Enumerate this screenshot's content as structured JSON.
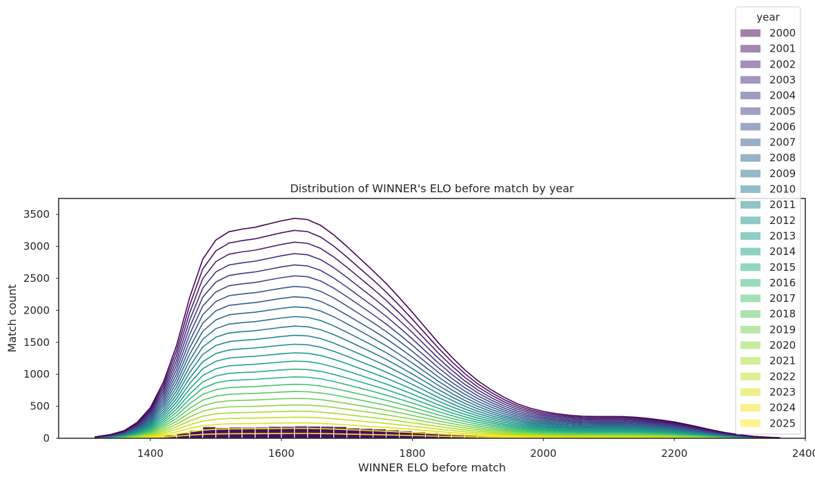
{
  "chart_data": {
    "type": "histogram-stacked-kde",
    "title": "Distribution of WINNER's ELO before match by year",
    "xlabel": "WINNER ELO before match",
    "ylabel": "Match count",
    "xlim": [
      1260,
      2400
    ],
    "ylim": [
      0,
      3750
    ],
    "x_ticks": [
      1400,
      1600,
      1800,
      2000,
      2200,
      2400
    ],
    "y_ticks": [
      0,
      500,
      1000,
      1500,
      2000,
      2500,
      3000,
      3500
    ],
    "grid": false,
    "legend": {
      "title": "year",
      "position": "upper-right"
    },
    "bin_width": 20,
    "bins": [
      [
        1320,
        20
      ],
      [
        1340,
        55
      ],
      [
        1360,
        110
      ],
      [
        1380,
        230
      ],
      [
        1400,
        480
      ],
      [
        1420,
        900
      ],
      [
        1440,
        1530
      ],
      [
        1460,
        2290
      ],
      [
        1480,
        3340
      ],
      [
        1500,
        3050
      ],
      [
        1520,
        3200
      ],
      [
        1540,
        3180
      ],
      [
        1560,
        3230
      ],
      [
        1580,
        3400
      ],
      [
        1600,
        3420
      ],
      [
        1620,
        3550
      ],
      [
        1640,
        3490
      ],
      [
        1660,
        3440
      ],
      [
        1680,
        3370
      ],
      [
        1700,
        2960
      ],
      [
        1720,
        2820
      ],
      [
        1740,
        2690
      ],
      [
        1760,
        2390
      ],
      [
        1780,
        2150
      ],
      [
        1800,
        1880
      ],
      [
        1820,
        1620
      ],
      [
        1840,
        1380
      ],
      [
        1860,
        1200
      ],
      [
        1880,
        1050
      ],
      [
        1900,
        850
      ],
      [
        1920,
        760
      ],
      [
        1940,
        660
      ],
      [
        1960,
        560
      ],
      [
        1980,
        470
      ],
      [
        2000,
        420
      ],
      [
        2020,
        380
      ],
      [
        2040,
        350
      ],
      [
        2060,
        320
      ],
      [
        2080,
        320
      ],
      [
        2100,
        330
      ],
      [
        2120,
        330
      ],
      [
        2140,
        320
      ],
      [
        2160,
        300
      ],
      [
        2180,
        280
      ],
      [
        2200,
        250
      ],
      [
        2220,
        220
      ],
      [
        2240,
        170
      ],
      [
        2260,
        120
      ],
      [
        2280,
        80
      ],
      [
        2300,
        60
      ],
      [
        2320,
        40
      ],
      [
        2340,
        20
      ]
    ],
    "kde_total_curve": [
      [
        1315,
        20
      ],
      [
        1340,
        60
      ],
      [
        1360,
        120
      ],
      [
        1380,
        250
      ],
      [
        1400,
        480
      ],
      [
        1420,
        880
      ],
      [
        1440,
        1450
      ],
      [
        1460,
        2200
      ],
      [
        1480,
        2800
      ],
      [
        1500,
        3100
      ],
      [
        1520,
        3230
      ],
      [
        1540,
        3270
      ],
      [
        1560,
        3300
      ],
      [
        1580,
        3350
      ],
      [
        1600,
        3400
      ],
      [
        1620,
        3440
      ],
      [
        1640,
        3420
      ],
      [
        1660,
        3330
      ],
      [
        1680,
        3180
      ],
      [
        1700,
        3000
      ],
      [
        1720,
        2810
      ],
      [
        1740,
        2620
      ],
      [
        1760,
        2420
      ],
      [
        1780,
        2200
      ],
      [
        1800,
        1970
      ],
      [
        1820,
        1730
      ],
      [
        1840,
        1490
      ],
      [
        1860,
        1270
      ],
      [
        1880,
        1070
      ],
      [
        1900,
        900
      ],
      [
        1920,
        760
      ],
      [
        1940,
        640
      ],
      [
        1960,
        540
      ],
      [
        1980,
        470
      ],
      [
        2000,
        420
      ],
      [
        2020,
        385
      ],
      [
        2040,
        360
      ],
      [
        2060,
        345
      ],
      [
        2080,
        340
      ],
      [
        2100,
        340
      ],
      [
        2120,
        340
      ],
      [
        2140,
        330
      ],
      [
        2160,
        310
      ],
      [
        2180,
        285
      ],
      [
        2200,
        255
      ],
      [
        2220,
        215
      ],
      [
        2240,
        170
      ],
      [
        2260,
        125
      ],
      [
        2280,
        85
      ],
      [
        2300,
        55
      ],
      [
        2320,
        32
      ],
      [
        2340,
        18
      ],
      [
        2362,
        8
      ]
    ],
    "series": [
      {
        "name": "2000",
        "color": "#44015499"
      },
      {
        "name": "2001",
        "color": "#48186a99"
      },
      {
        "name": "2002",
        "color": "#472d7b99"
      },
      {
        "name": "2003",
        "color": "#424086"
      },
      {
        "name": "2004",
        "color": "#3b528b"
      },
      {
        "name": "2005",
        "color": "#33638d"
      },
      {
        "name": "2006",
        "color": "#2c728e"
      },
      {
        "name": "2007",
        "color": "#26828e"
      },
      {
        "name": "2008",
        "color": "#21918c"
      },
      {
        "name": "2009",
        "color": "#1fa088"
      },
      {
        "name": "2010",
        "color": "#28ae80"
      },
      {
        "name": "2011",
        "color": "#3fbc73"
      },
      {
        "name": "2012",
        "color": "#5ec962"
      },
      {
        "name": "2013",
        "color": "#84d44b"
      },
      {
        "name": "2014",
        "color": "#addc30"
      },
      {
        "name": "2015",
        "color": "#d8e219"
      },
      {
        "name": "2016",
        "color": "#fde725"
      },
      {
        "name": "2017",
        "color": "#fde725"
      },
      {
        "name": "2018",
        "color": "#fde725"
      },
      {
        "name": "2019",
        "color": "#fde725"
      },
      {
        "name": "2020",
        "color": "#fde725"
      },
      {
        "name": "2021",
        "color": "#fde725"
      },
      {
        "name": "2022",
        "color": "#fde725"
      },
      {
        "name": "2023",
        "color": "#fde725"
      },
      {
        "name": "2024",
        "color": "#fde725"
      },
      {
        "name": "2025",
        "color": "#fde725"
      }
    ],
    "legend_colors": [
      "#440154",
      "#471164",
      "#481f70",
      "#472d7b",
      "#443a83",
      "#404688",
      "#3b528b",
      "#365d8d",
      "#31688e",
      "#2c728e",
      "#287c8e",
      "#24868e",
      "#21918c",
      "#1f9a8a",
      "#20a486",
      "#27ad81",
      "#35b779",
      "#47c16e",
      "#5dc863",
      "#75d054",
      "#8fd744",
      "#a8db34",
      "#c2df23",
      "#dde318",
      "#f5e61f",
      "#fde725"
    ]
  }
}
